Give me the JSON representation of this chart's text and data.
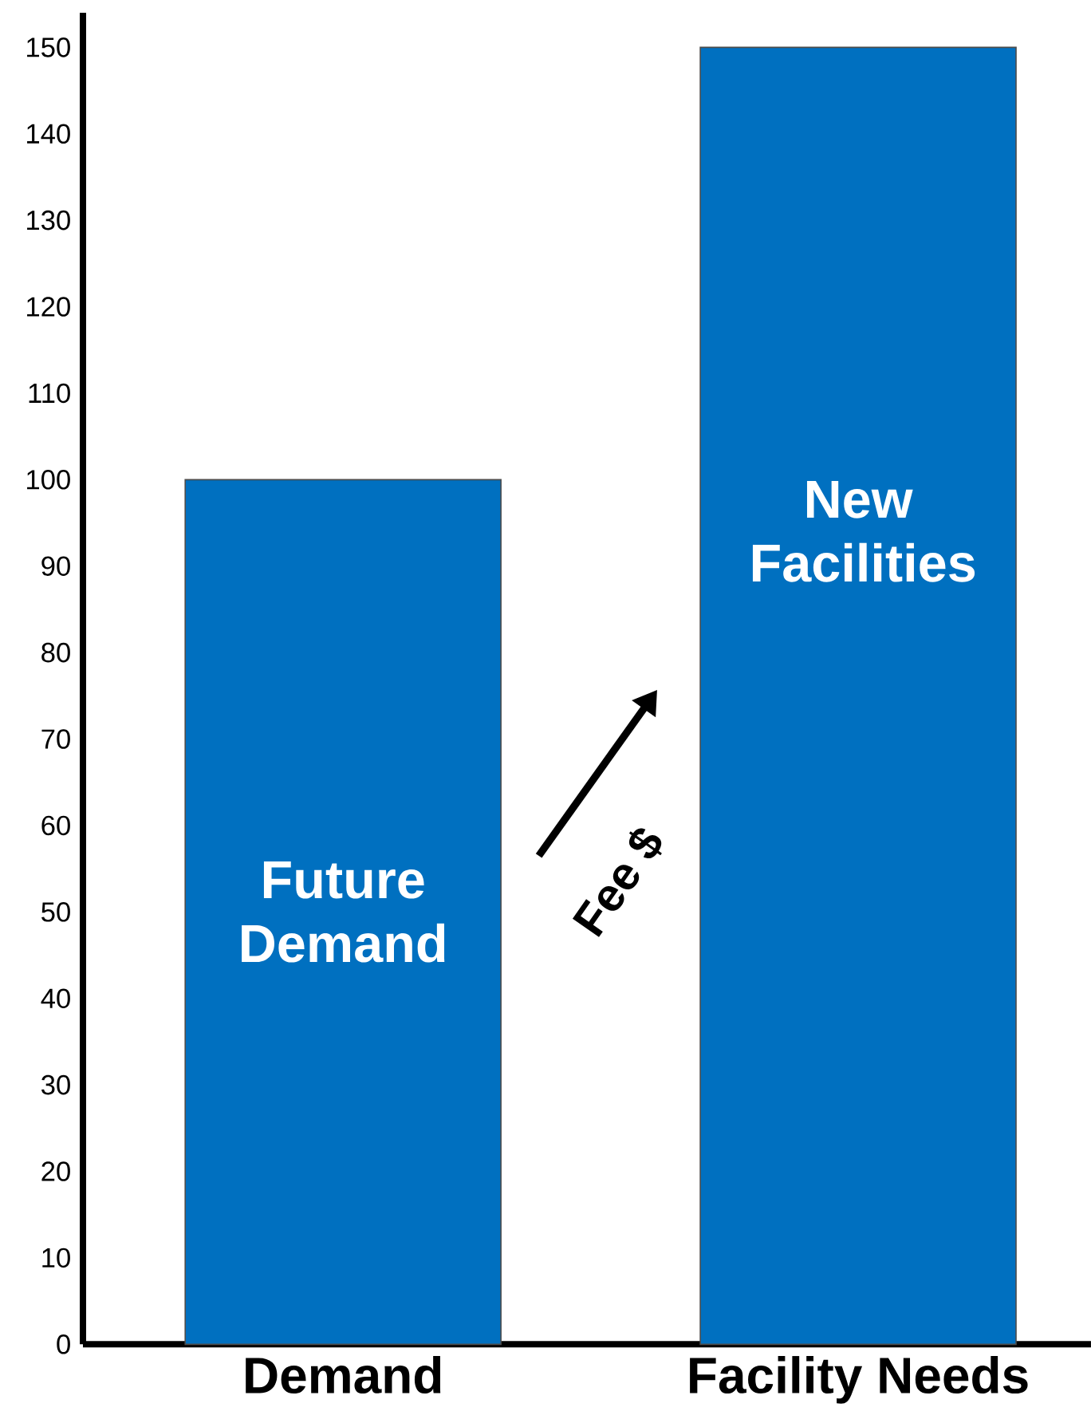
{
  "chart_data": {
    "type": "bar",
    "categories": [
      "Demand",
      "Facility Needs"
    ],
    "values": [
      100,
      150
    ],
    "color": "#0070c0",
    "ylim": [
      0,
      154
    ],
    "yticks": [
      0,
      10,
      20,
      30,
      40,
      50,
      60,
      70,
      80,
      90,
      100,
      110,
      120,
      130,
      140,
      150
    ],
    "annotations": [
      "Future Demand",
      "New Facilities",
      "Fee $"
    ]
  }
}
